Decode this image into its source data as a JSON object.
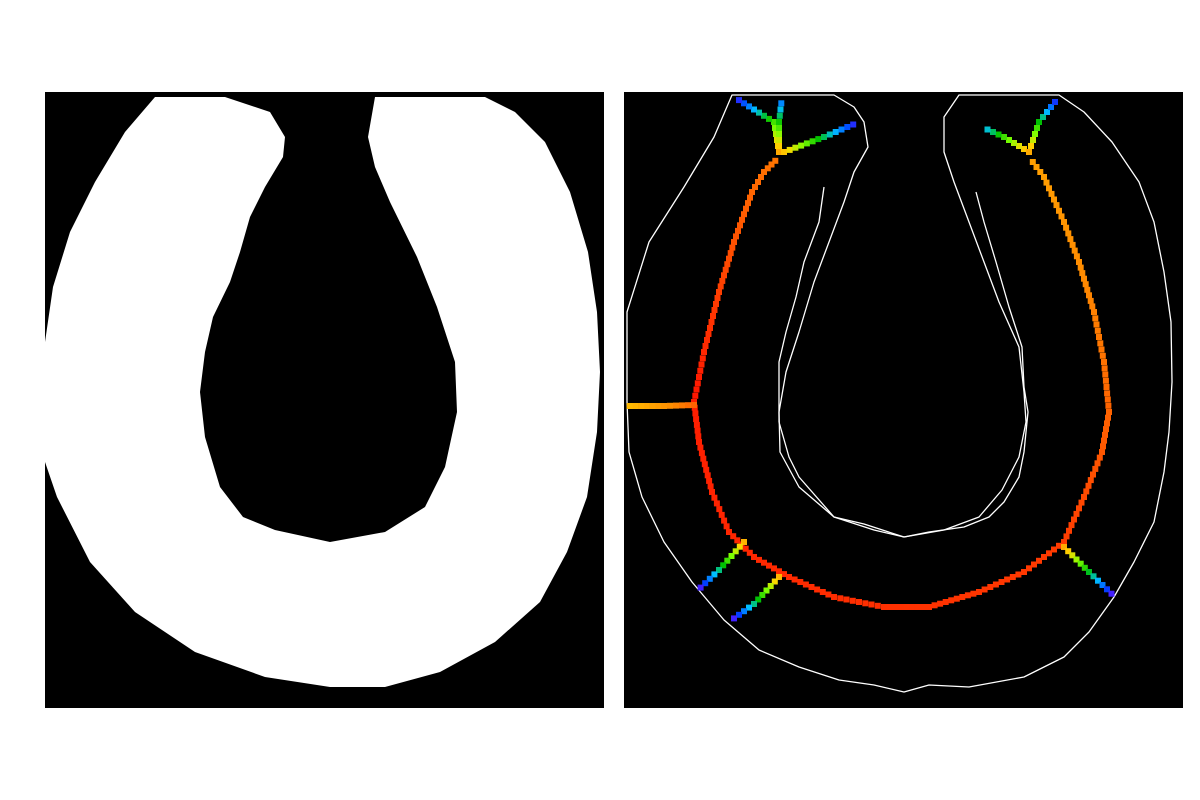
{
  "figure": {
    "left_panel": {
      "kind": "binary-mask",
      "foreground_color": "#ffffff",
      "background_color": "#000000"
    },
    "right_panel": {
      "kind": "skeleton-overlay",
      "contour_color": "#ffffff",
      "background_color": "#000000",
      "skeleton_colormap": [
        "#ff0000",
        "#ff8c00",
        "#ffd700",
        "#7fff00",
        "#00c000",
        "#00bfff",
        "#0040ff",
        "#8000ff"
      ]
    }
  }
}
